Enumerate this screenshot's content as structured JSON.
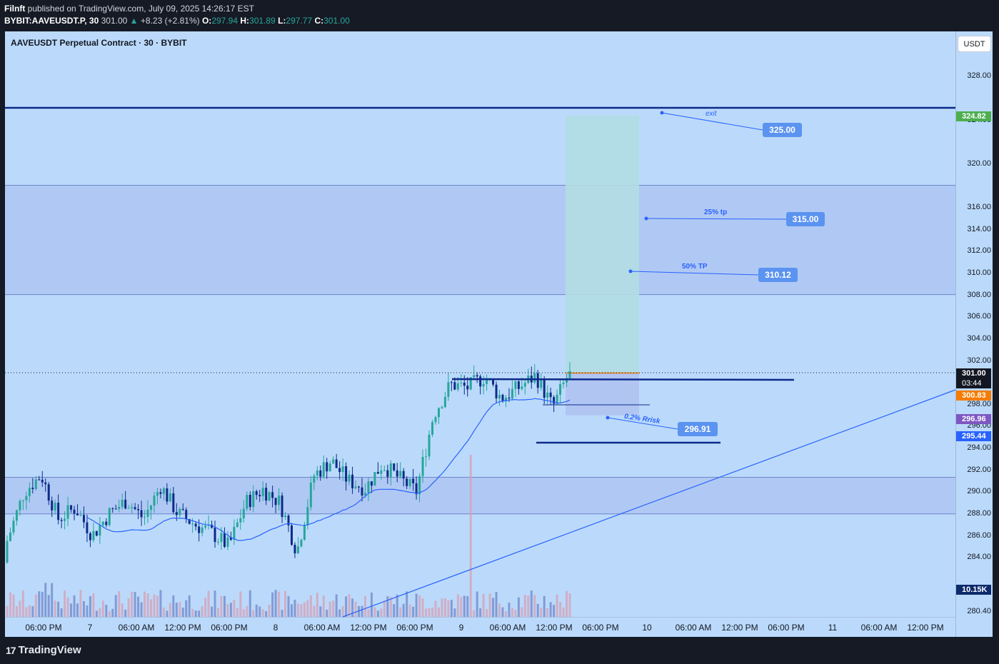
{
  "header": {
    "author": "Filnft",
    "published_text": " published on TradingView.com, July 09, 2025 14:26:17 EST",
    "symbol": "BYBIT:AAVEUSDT.P, 30",
    "last": "301.00",
    "change_arrow": "▲",
    "change": "+8.23 (+2.81%)",
    "o_label": "O:",
    "o": "297.94",
    "h_label": "H:",
    "h": "301.89",
    "l_label": "L:",
    "l": "297.77",
    "c_label": "C:",
    "c": "301.00"
  },
  "chart_title": "AAVEUSDT Perpetual Contract · 30 · BYBIT",
  "currency_button": "USDT",
  "footer": {
    "logo_mark": "17",
    "logo_text": "TradingView"
  },
  "price_axis": [
    "328.00",
    "324.00",
    "320.00",
    "316.00",
    "314.00",
    "312.00",
    "310.00",
    "308.00",
    "306.00",
    "304.00",
    "302.00",
    "298.00",
    "296.00",
    "294.00",
    "292.00",
    "290.00",
    "288.00",
    "286.00",
    "284.00",
    "280.40"
  ],
  "time_axis": [
    "06:00 PM",
    "7",
    "06:00 AM",
    "12:00 PM",
    "06:00 PM",
    "8",
    "06:00 AM",
    "12:00 PM",
    "06:00 PM",
    "9",
    "06:00 AM",
    "12:00 PM",
    "06:00 PM",
    "10",
    "06:00 AM",
    "12:00 PM",
    "06:00 PM",
    "11",
    "06:00 AM",
    "12:00 PM"
  ],
  "axis_tags": {
    "exit_level": {
      "text": "324.82",
      "color": "#4caf50"
    },
    "last_price": {
      "text": "301.00",
      "color": "#131722"
    },
    "countdown": {
      "text": "03:44",
      "color": "#131722"
    },
    "entry": {
      "text": "300.83",
      "color": "#f57c00"
    },
    "stop": {
      "text": "296.96",
      "color": "#7e57c2"
    },
    "ma": {
      "text": "295.44",
      "color": "#2962ff"
    },
    "volume": {
      "text": "10.15K",
      "color": "#0d2a6b"
    }
  },
  "annotations": {
    "exit": {
      "label": "exit",
      "price": "325.00"
    },
    "tp25": {
      "label": "25% tp",
      "price": "315.00"
    },
    "tp50": {
      "label": "50% TP",
      "price": "310.12"
    },
    "risk": {
      "label": "0.2% Rrisk",
      "price": "296.91"
    }
  },
  "colors": {
    "chart_bg": "#bbdafb",
    "zone_fill": "#aec6f2",
    "candle_up": "#26a69a",
    "candle_down": "#0d2a8a",
    "line_blue": "#0d2a8a",
    "ma_line": "#2962ff",
    "profit_zone": "#b3dde3",
    "loss_zone": "#b0c4f2"
  },
  "chart_data": {
    "type": "candlestick",
    "symbol": "BYBIT:AAVEUSDT.P",
    "interval": "30",
    "y_range": [
      280.0,
      329.5
    ],
    "levels": [
      324.82,
      300.83,
      296.96,
      295.44
    ],
    "zones": [
      [
        308.0,
        318.0
      ],
      [
        287.95,
        291.3
      ]
    ],
    "candles_close_sampled": [
      285.5,
      290.0,
      291.5,
      287.5,
      288.5,
      286.0,
      288.0,
      289.2,
      287.5,
      290.5,
      288.0,
      287.0,
      286.2,
      285.0,
      289.0,
      290.2,
      289.0,
      284.5,
      291.5,
      292.8,
      291.0,
      290.3,
      292.5,
      291.2,
      290.0,
      297.0,
      299.8,
      299.5,
      300.5,
      298.5,
      299.5,
      300.6,
      297.7,
      301.0
    ]
  }
}
